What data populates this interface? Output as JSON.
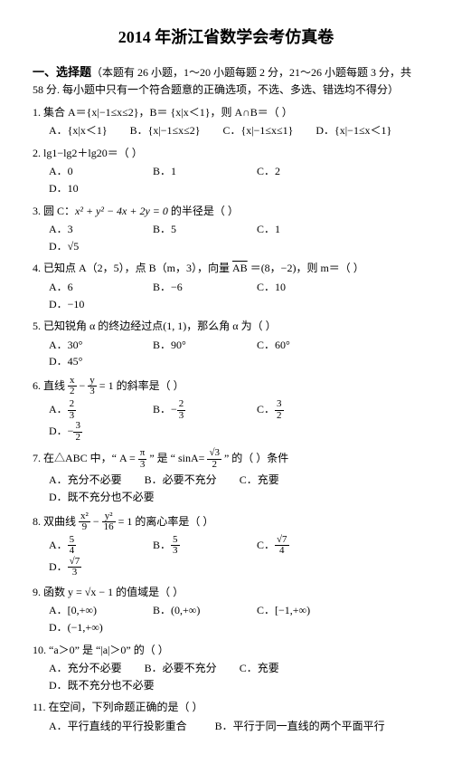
{
  "title": "2014 年浙江省数学会考仿真卷",
  "section1_head": "一、选择题",
  "section1_desc": "（本题有 26 小题，1～20 小题每题 2 分，21～26 小题每题 3 分，共 58 分. 每小题中只有一个符合题意的正确选项，不选、多选、错选均不得分）",
  "q1": "1.  集合 A＝{x|−1≤x≤2}，B＝ {x|x＜1}，则 A∩B＝（    ）",
  "q1a": "A．{x|x＜1}",
  "q1b": "B．{x|−1≤x≤2}",
  "q1c": "C．{x|−1≤x≤1}",
  "q1d": "D．{x|−1≤x＜1}",
  "q2": "2.  lg1−lg2＋lg20＝（    ）",
  "q2a": "A．0",
  "q2b": "B．1",
  "q2c": "C．2",
  "q2d": "D．10",
  "q3_pre": "3.  圆 C：",
  "q3_eq": "x² + y² − 4x + 2y = 0",
  "q3_post": " 的半径是（    ）",
  "q3a": "A．3",
  "q3b": "B．5",
  "q3c": "C．1",
  "q3d": "D．√5",
  "q4_pre": "4.  已知点 A（2，5），点 B（m，3），向量 ",
  "q4_vec": "AB",
  "q4_post": " ＝(8，−2)，则 m＝（    ）",
  "q4a": "A．6",
  "q4b": "B．−6",
  "q4c": "C．10",
  "q4d": "D．−10",
  "q5": "5.  已知锐角 α 的终边经过点(1, 1)，那么角 α 为（    ）",
  "q5a": "A．30°",
  "q5b": "B．90°",
  "q5c": "C．60°",
  "q5d": "D．45°",
  "q6a_pre": "6.  直线 ",
  "q6a_n": "x",
  "q6a_d": "2",
  "q6a_mid": " − ",
  "q6b_n": "y",
  "q6b_d": "3",
  "q6a_post": " = 1 的斜率是（    ）",
  "q6oa_n": "2",
  "q6oa_d": "3",
  "q6ob_n": "2",
  "q6ob_d": "3",
  "q6oc_n": "3",
  "q6oc_d": "2",
  "q6od_n": "3",
  "q6od_d": "2",
  "q6A": "A．",
  "q6B": "B．−",
  "q6C": "C．",
  "q6D": "D．−",
  "q7pre": "7.  在△ABC 中，“ A = ",
  "q7pi_n": "π",
  "q7pi_d": "3",
  "q7mid": " ” 是 “ sinA= ",
  "q7s_n": "√3",
  "q7s_d": "2",
  "q7post": " ” 的（     ）条件",
  "q7a": "A．充分不必要",
  "q7b": "B．必要不充分",
  "q7c": "C．充要",
  "q7d": "D．既不充分也不必要",
  "q8pre": "8.  双曲线 ",
  "q8a_n": "x²",
  "q8a_d": "9",
  "q8mid": " − ",
  "q8b_n": "y²",
  "q8b_d": "16",
  "q8post": " = 1 的离心率是（    ）",
  "q8A": "A．",
  "q8oa_n": "5",
  "q8oa_d": "4",
  "q8B": "B．",
  "q8ob_n": "5",
  "q8ob_d": "3",
  "q8C": "C．",
  "q8oc_n": "√7",
  "q8oc_d": "4",
  "q8D": "D．",
  "q8od_n": "√7",
  "q8od_d": "3",
  "q9": "9.  函数 y = √x − 1 的值域是（    ）",
  "q9a": "A．[0,+∞)",
  "q9b": "B．(0,+∞)",
  "q9c": "C．[−1,+∞)",
  "q9d": "D．(−1,+∞)",
  "q10": "10. “a＞0” 是 “|a|＞0” 的（    ）",
  "q10a": "A．充分不必要",
  "q10b": "B．必要不充分",
  "q10c": "C．充要",
  "q10d": "D．既不充分也不必要",
  "q11": "11.  在空间，下列命题正确的是（    ）",
  "q11a": "A．平行直线的平行投影重合",
  "q11b": "B．平行于同一直线的两个平面平行"
}
